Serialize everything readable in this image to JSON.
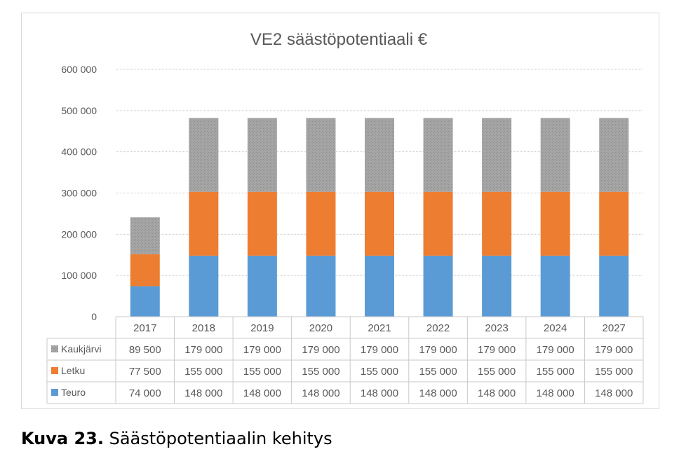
{
  "chart_data": {
    "type": "bar",
    "stacked": true,
    "title": "VE2 säästöpotentiaali €",
    "categories": [
      "2017",
      "2018",
      "2019",
      "2020",
      "2021",
      "2022",
      "2023",
      "2024",
      "2027"
    ],
    "series": [
      {
        "name": "Teuro",
        "values": [
          74000,
          148000,
          148000,
          148000,
          148000,
          148000,
          148000,
          148000,
          148000
        ],
        "color": "#5b9bd5",
        "labels": [
          "74 000",
          "148 000",
          "148 000",
          "148 000",
          "148 000",
          "148 000",
          "148 000",
          "148 000",
          "148 000"
        ]
      },
      {
        "name": "Letku",
        "values": [
          77500,
          155000,
          155000,
          155000,
          155000,
          155000,
          155000,
          155000,
          155000
        ],
        "color": "#ed7d31",
        "labels": [
          "77 500",
          "155 000",
          "155 000",
          "155 000",
          "155 000",
          "155 000",
          "155 000",
          "155 000",
          "155 000"
        ]
      },
      {
        "name": "Kaukjärvi",
        "values": [
          89500,
          179000,
          179000,
          179000,
          179000,
          179000,
          179000,
          179000,
          179000
        ],
        "color": "#a5a5a5",
        "labels": [
          "89 500",
          "179 000",
          "179 000",
          "179 000",
          "179 000",
          "179 000",
          "179 000",
          "179 000",
          "179 000"
        ]
      }
    ],
    "yticks": [
      0,
      100000,
      200000,
      300000,
      400000,
      500000,
      600000
    ],
    "ytick_labels": [
      "0",
      "100 000",
      "200 000",
      "300 000",
      "400 000",
      "500 000",
      "600 000"
    ],
    "ylim": [
      0,
      600000
    ],
    "grid": true,
    "legend": "data-table",
    "xlabel": "",
    "ylabel": ""
  },
  "caption": {
    "label": "Kuva 23.",
    "text": " Säästöpotentiaalin kehitys"
  }
}
